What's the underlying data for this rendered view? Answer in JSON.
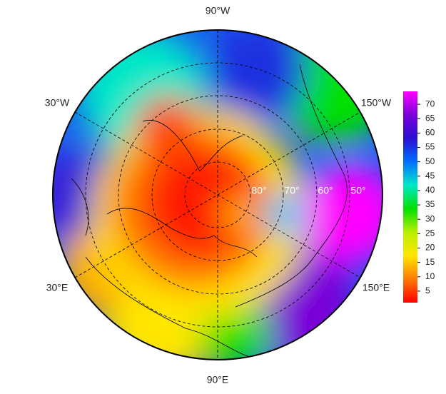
{
  "map": {
    "longitude_labels": [
      "90°W",
      "150°W",
      "150°E",
      "90°E",
      "30°E",
      "30°W"
    ],
    "latitude_labels": [
      "80°",
      "70°",
      "60°",
      "50°"
    ],
    "colorbar": {
      "lim": [
        1,
        74.5
      ],
      "ticks": [
        5,
        10,
        15,
        20,
        25,
        30,
        35,
        40,
        45,
        50,
        55,
        60,
        65,
        70
      ],
      "colors": [
        "#ff0000",
        "#ff7a00",
        "#ffe600",
        "#b8f000",
        "#00e000",
        "#00e8c8",
        "#0070ff",
        "#2a10d0",
        "#7a00d8",
        "#ff00ff"
      ]
    }
  }
}
